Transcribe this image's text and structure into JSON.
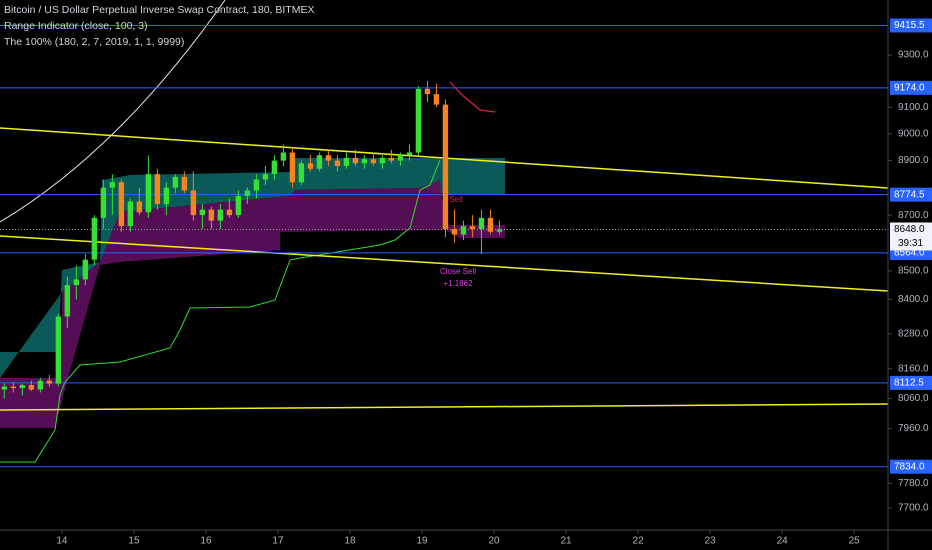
{
  "chart_data": {
    "type": "candlestick",
    "title": "Bitcoin / US Dollar Perpetual Inverse Swap Contract, 180, BITMEX",
    "indicators": [
      "Range Indicator (close, 100, 3)",
      "The 100% (180, 2, 7, 2019, 1, 1, 9999)"
    ],
    "log_scale": true,
    "up_color": "#33e033",
    "down_color": "#f5841f",
    "xlim": [
      13.14,
      25.47
    ],
    "xticks": [
      14,
      15,
      16,
      17,
      18,
      19,
      20,
      21,
      22,
      23,
      24,
      25
    ],
    "ylim": [
      7630,
      9516
    ],
    "yticks": [
      {
        "value": 9300,
        "label": "9300.0"
      },
      {
        "value": 9100,
        "label": "9100.0"
      },
      {
        "value": 9000,
        "label": "9000.0"
      },
      {
        "value": 8900,
        "label": "8900.0"
      },
      {
        "value": 8700,
        "label": "8700.0"
      },
      {
        "value": 8500,
        "label": "8500.0"
      },
      {
        "value": 8400,
        "label": "8400.0"
      },
      {
        "value": 8280,
        "label": "8280.0"
      },
      {
        "value": 8160,
        "label": "8160.0"
      },
      {
        "value": 8060,
        "label": "8060.0"
      },
      {
        "value": 7960,
        "label": "7960.0"
      },
      {
        "value": 7780,
        "label": "7780.0"
      },
      {
        "value": 7700,
        "label": "7700.0"
      }
    ],
    "levels": [
      {
        "value": 9415.5,
        "label": "9415.5"
      },
      {
        "value": 9174,
        "label": "9174.0"
      },
      {
        "value": 8774.5,
        "label": "8774.5"
      },
      {
        "value": 8564,
        "label": "8564.0"
      },
      {
        "value": 8112.5,
        "label": "8112.5"
      },
      {
        "value": 7834,
        "label": "7834.0"
      }
    ],
    "level_color": "#2962ff",
    "last_price": {
      "value": 8648,
      "label": "8648.0"
    },
    "countdown": "39:31",
    "annotations": [
      "Sell",
      "Close Sell",
      "+1.1862"
    ],
    "x": [
      13.2,
      13.325,
      13.45,
      13.575,
      13.7,
      13.825,
      13.95,
      14.075,
      14.2,
      14.325,
      14.45,
      14.575,
      14.7,
      14.825,
      14.95,
      15.075,
      15.2,
      15.325,
      15.45,
      15.575,
      15.7,
      15.825,
      15.95,
      16.075,
      16.2,
      16.325,
      16.45,
      16.575,
      16.7,
      16.825,
      16.95,
      17.075,
      17.2,
      17.325,
      17.45,
      17.575,
      17.7,
      17.825,
      17.95,
      18.075,
      18.2,
      18.325,
      18.45,
      18.575,
      18.7,
      18.825,
      18.95,
      19.075,
      19.2,
      19.325,
      19.45,
      19.575,
      19.7,
      19.825,
      19.95,
      20.075
    ],
    "open": [
      8090,
      8100,
      8095,
      8105,
      8090,
      8120,
      8110,
      8340,
      8450,
      8470,
      8540,
      8690,
      8800,
      8820,
      8660,
      8750,
      8710,
      8850,
      8740,
      8800,
      8840,
      8790,
      8700,
      8720,
      8680,
      8720,
      8700,
      8770,
      8790,
      8830,
      8850,
      8900,
      8930,
      8820,
      8890,
      8870,
      8920,
      8900,
      8880,
      8910,
      8890,
      8905,
      8890,
      8910,
      8900,
      8920,
      8930,
      9170,
      9150,
      9110,
      8650,
      8630,
      8660,
      8650,
      8690,
      8640
    ],
    "high": [
      8110,
      8115,
      8110,
      8120,
      8130,
      8140,
      8350,
      8480,
      8520,
      8560,
      8700,
      8830,
      8850,
      8830,
      8760,
      8800,
      8920,
      8870,
      8820,
      8850,
      8860,
      8860,
      8740,
      8730,
      8740,
      8760,
      8790,
      8800,
      8850,
      8880,
      8920,
      8960,
      8950,
      8900,
      8920,
      8930,
      8940,
      8920,
      8930,
      8940,
      8920,
      8930,
      8920,
      8940,
      8930,
      8960,
      9180,
      9200,
      9190,
      9130,
      8720,
      8680,
      8700,
      8720,
      8720,
      8680
    ],
    "low": [
      8060,
      8080,
      8070,
      8085,
      8080,
      8100,
      8100,
      8300,
      8400,
      8450,
      8520,
      8650,
      8700,
      8640,
      8640,
      8700,
      8690,
      8720,
      8700,
      8780,
      8780,
      8680,
      8650,
      8650,
      8650,
      8690,
      8690,
      8740,
      8760,
      8810,
      8830,
      8880,
      8800,
      8810,
      8860,
      8860,
      8880,
      8860,
      8870,
      8880,
      8870,
      8880,
      8870,
      8890,
      8880,
      8900,
      8920,
      9120,
      9100,
      8620,
      8600,
      8610,
      8620,
      8560,
      8630,
      8630
    ],
    "close": [
      8100,
      8095,
      8105,
      8090,
      8120,
      8110,
      8340,
      8450,
      8470,
      8540,
      8690,
      8800,
      8820,
      8660,
      8750,
      8710,
      8850,
      8740,
      8800,
      8840,
      8790,
      8700,
      8720,
      8680,
      8720,
      8700,
      8770,
      8790,
      8830,
      8850,
      8900,
      8930,
      8820,
      8890,
      8870,
      8920,
      8900,
      8880,
      8910,
      8890,
      8905,
      8890,
      8910,
      8900,
      8920,
      8930,
      9170,
      9150,
      9110,
      8650,
      8630,
      8660,
      8650,
      8690,
      8640,
      8648
    ]
  }
}
